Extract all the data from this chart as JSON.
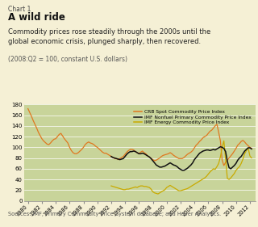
{
  "background_color": "#f5f0d5",
  "plot_bg_color": "#c8d49a",
  "chart1_label": "Chart 1",
  "title": "A wild ride",
  "subtitle": "Commodity prices rose steadily through the 2000s until the\nglobal economic crisis, plunged sharply, then recovered.",
  "subtitle2": "(2008:Q2 = 100, constant U.S. dollars)",
  "source": "Sources: IMF, Primary Commodity Price System database; and Haver Analytics.",
  "ylim": [
    0,
    180
  ],
  "yticks": [
    0,
    20,
    40,
    60,
    80,
    100,
    120,
    140,
    160,
    180
  ],
  "xlabel_years": [
    1980,
    1982,
    1984,
    1986,
    1988,
    1990,
    1992,
    1994,
    1996,
    1998,
    2000,
    2002,
    2004,
    2006,
    2008,
    2010,
    2012
  ],
  "crb_color": "#e07820",
  "imf_nonfuel_color": "#111111",
  "imf_energy_color": "#c8aa00",
  "crb_x": [
    1980,
    1980.25,
    1980.5,
    1980.75,
    1981,
    1981.25,
    1981.5,
    1981.75,
    1982,
    1982.25,
    1982.5,
    1982.75,
    1983,
    1983.25,
    1983.5,
    1983.75,
    1984,
    1984.25,
    1984.5,
    1984.75,
    1985,
    1985.25,
    1985.5,
    1985.75,
    1986,
    1986.25,
    1986.5,
    1986.75,
    1987,
    1987.25,
    1987.5,
    1987.75,
    1988,
    1988.25,
    1988.5,
    1988.75,
    1989,
    1989.25,
    1989.5,
    1989.75,
    1990,
    1990.25,
    1990.5,
    1990.75,
    1991,
    1991.25,
    1991.5,
    1991.75,
    1992,
    1992.25,
    1992.5,
    1992.75,
    1993,
    1993.25,
    1993.5,
    1993.75,
    1994,
    1994.25,
    1994.5,
    1994.75,
    1995,
    1995.25,
    1995.5,
    1995.75,
    1996,
    1996.25,
    1996.5,
    1996.75,
    1997,
    1997.25,
    1997.5,
    1997.75,
    1998,
    1998.25,
    1998.5,
    1998.75,
    1999,
    1999.25,
    1999.5,
    1999.75,
    2000,
    2000.25,
    2000.5,
    2000.75,
    2001,
    2001.25,
    2001.5,
    2001.75,
    2002,
    2002.25,
    2002.5,
    2002.75,
    2003,
    2003.25,
    2003.5,
    2003.75,
    2004,
    2004.25,
    2004.5,
    2004.75,
    2005,
    2005.25,
    2005.5,
    2005.75,
    2006,
    2006.25,
    2006.5,
    2006.75,
    2007,
    2007.25,
    2007.5,
    2007.75,
    2008,
    2008.25,
    2008.5,
    2008.75,
    2009,
    2009.25,
    2009.5,
    2009.75,
    2010,
    2010.25,
    2010.5,
    2010.75,
    2011,
    2011.25,
    2011.5,
    2011.75,
    2012,
    2012.25
  ],
  "crb_y": [
    172,
    165,
    158,
    150,
    143,
    136,
    128,
    122,
    116,
    112,
    109,
    106,
    105,
    108,
    112,
    115,
    116,
    120,
    124,
    126,
    121,
    116,
    112,
    108,
    100,
    94,
    90,
    88,
    88,
    90,
    93,
    96,
    100,
    105,
    108,
    110,
    108,
    107,
    105,
    102,
    100,
    97,
    94,
    91,
    89,
    89,
    87,
    85,
    83,
    81,
    79,
    79,
    77,
    79,
    81,
    83,
    87,
    91,
    94,
    96,
    96,
    95,
    92,
    90,
    88,
    91,
    93,
    90,
    88,
    84,
    82,
    79,
    77,
    75,
    76,
    78,
    80,
    83,
    85,
    86,
    87,
    88,
    90,
    88,
    85,
    83,
    81,
    79,
    79,
    79,
    81,
    84,
    87,
    89,
    91,
    94,
    99,
    104,
    107,
    111,
    114,
    118,
    120,
    122,
    126,
    130,
    132,
    136,
    140,
    143,
    128,
    112,
    76,
    66,
    72,
    76,
    80,
    84,
    88,
    93,
    98,
    104,
    107,
    111,
    113,
    110,
    106,
    103,
    100,
    98
  ],
  "imf_nonfuel_x": [
    1992,
    1992.25,
    1992.5,
    1992.75,
    1993,
    1993.25,
    1993.5,
    1993.75,
    1994,
    1994.25,
    1994.5,
    1994.75,
    1995,
    1995.25,
    1995.5,
    1995.75,
    1996,
    1996.25,
    1996.5,
    1996.75,
    1997,
    1997.25,
    1997.5,
    1997.75,
    1998,
    1998.25,
    1998.5,
    1998.75,
    1999,
    1999.25,
    1999.5,
    1999.75,
    2000,
    2000.25,
    2000.5,
    2000.75,
    2001,
    2001.25,
    2001.5,
    2001.75,
    2002,
    2002.25,
    2002.5,
    2002.75,
    2003,
    2003.25,
    2003.5,
    2003.75,
    2004,
    2004.25,
    2004.5,
    2004.75,
    2005,
    2005.25,
    2005.5,
    2005.75,
    2006,
    2006.25,
    2006.5,
    2006.75,
    2007,
    2007.25,
    2007.5,
    2007.75,
    2008,
    2008.25,
    2008.5,
    2008.75,
    2009,
    2009.25,
    2009.5,
    2009.75,
    2010,
    2010.25,
    2010.5,
    2010.75,
    2011,
    2011.25,
    2011.5,
    2011.75,
    2012,
    2012.25
  ],
  "imf_nonfuel_y": [
    83,
    81,
    80,
    79,
    78,
    77,
    78,
    79,
    83,
    87,
    90,
    92,
    92,
    93,
    92,
    90,
    88,
    88,
    89,
    88,
    86,
    84,
    82,
    79,
    75,
    71,
    67,
    65,
    63,
    63,
    64,
    65,
    67,
    69,
    71,
    69,
    67,
    66,
    64,
    61,
    59,
    57,
    57,
    59,
    61,
    64,
    67,
    71,
    77,
    81,
    85,
    89,
    91,
    93,
    94,
    95,
    95,
    94,
    95,
    96,
    95,
    97,
    99,
    101,
    100,
    98,
    92,
    74,
    62,
    60,
    63,
    66,
    70,
    76,
    80,
    83,
    88,
    93,
    96,
    99,
    99,
    97
  ],
  "imf_energy_x": [
    1992,
    1992.25,
    1992.5,
    1992.75,
    1993,
    1993.25,
    1993.5,
    1993.75,
    1994,
    1994.25,
    1994.5,
    1994.75,
    1995,
    1995.25,
    1995.5,
    1995.75,
    1996,
    1996.25,
    1996.5,
    1996.75,
    1997,
    1997.25,
    1997.5,
    1997.75,
    1998,
    1998.25,
    1998.5,
    1998.75,
    1999,
    1999.25,
    1999.5,
    1999.75,
    2000,
    2000.25,
    2000.5,
    2000.75,
    2001,
    2001.25,
    2001.5,
    2001.75,
    2002,
    2002.25,
    2002.5,
    2002.75,
    2003,
    2003.25,
    2003.5,
    2003.75,
    2004,
    2004.25,
    2004.5,
    2004.75,
    2005,
    2005.25,
    2005.5,
    2005.75,
    2006,
    2006.25,
    2006.5,
    2006.75,
    2007,
    2007.25,
    2007.5,
    2007.75,
    2008,
    2008.25,
    2008.5,
    2008.75,
    2009,
    2009.25,
    2009.5,
    2009.75,
    2010,
    2010.25,
    2010.5,
    2010.75,
    2011,
    2011.25,
    2011.5,
    2011.75,
    2012,
    2012.25
  ],
  "imf_energy_y": [
    28,
    27,
    26,
    25,
    24,
    23,
    22,
    21,
    21,
    22,
    22,
    23,
    24,
    25,
    26,
    25,
    27,
    28,
    28,
    27,
    27,
    26,
    25,
    22,
    17,
    15,
    14,
    13,
    15,
    17,
    19,
    21,
    25,
    27,
    29,
    27,
    25,
    23,
    21,
    19,
    19,
    20,
    21,
    22,
    23,
    25,
    27,
    29,
    31,
    33,
    35,
    37,
    39,
    41,
    43,
    46,
    50,
    54,
    57,
    60,
    59,
    64,
    70,
    82,
    100,
    112,
    78,
    42,
    40,
    43,
    47,
    51,
    57,
    61,
    64,
    70,
    78,
    88,
    94,
    99,
    84,
    80
  ]
}
